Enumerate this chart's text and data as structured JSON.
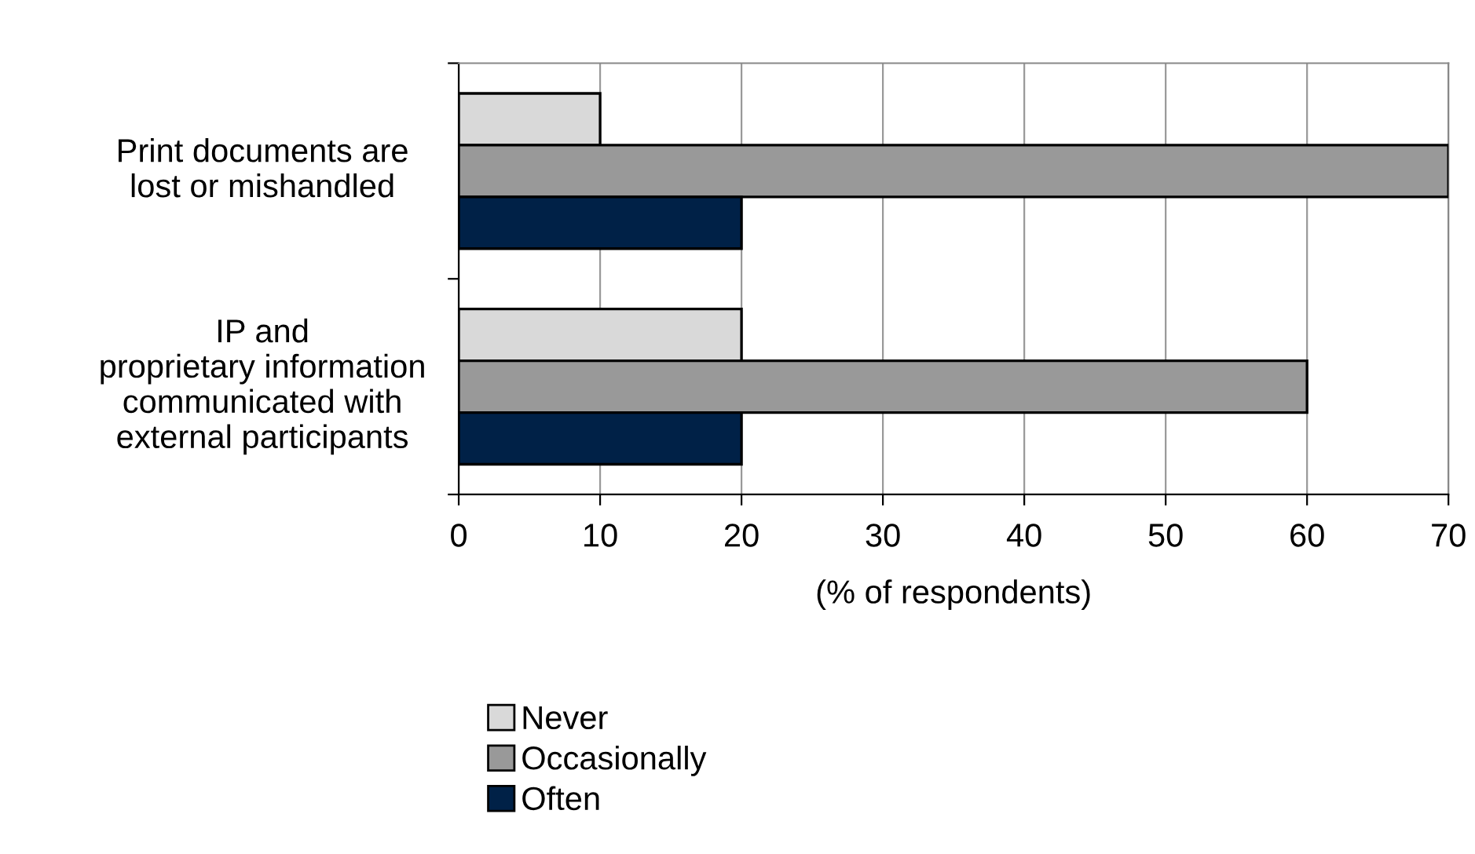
{
  "chart_data": {
    "type": "bar",
    "orientation": "horizontal",
    "xlabel": "(% of respondents)",
    "categories": [
      "Print documents are\nlost or mishandled",
      "IP and\nproprietary information\ncommunicated with\nexternal participants"
    ],
    "series": [
      {
        "name": "Never",
        "color": "#d9d9d9",
        "values": [
          10,
          20
        ]
      },
      {
        "name": "Occasionally",
        "color": "#999999",
        "values": [
          70,
          60
        ]
      },
      {
        "name": "Often",
        "color": "#002147",
        "values": [
          20,
          20
        ]
      }
    ],
    "xlim": [
      0,
      70
    ],
    "xticks": [
      0,
      10,
      20,
      30,
      40,
      50,
      60,
      70
    ],
    "grid": "x",
    "legend": "bottom"
  }
}
